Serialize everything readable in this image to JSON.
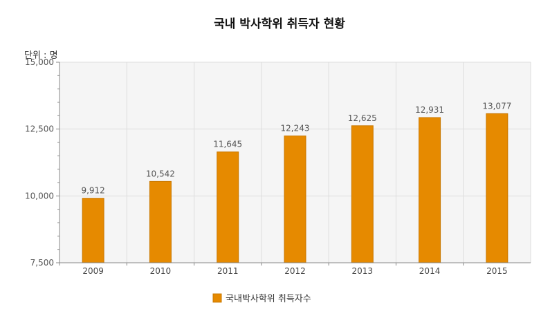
{
  "chart_data": {
    "type": "bar",
    "title": "국내 박사학위 취득자 현황",
    "unit_label": "단위 : 명",
    "categories": [
      "2009",
      "2010",
      "2011",
      "2012",
      "2013",
      "2014",
      "2015"
    ],
    "series": [
      {
        "name": "국내박사학위 취득자수",
        "values": [
          9912,
          10542,
          11645,
          12243,
          12625,
          12931,
          13077
        ],
        "data_labels": [
          "9,912",
          "10,542",
          "11,645",
          "12,243",
          "12,625",
          "12,931",
          "13,077"
        ]
      }
    ],
    "ylim": [
      7500,
      15000
    ],
    "yticks": [
      7500,
      10000,
      12500,
      15000
    ],
    "ytick_labels": [
      "7,500",
      "10,000",
      "12,500",
      "15,000"
    ],
    "grid": true,
    "legend_position": "bottom",
    "colors": {
      "bar": "#e68a00",
      "bar_edge": "#c97800",
      "plot_background": "#f5f5f5",
      "grid": "#dddddd",
      "axis": "#888888"
    }
  }
}
